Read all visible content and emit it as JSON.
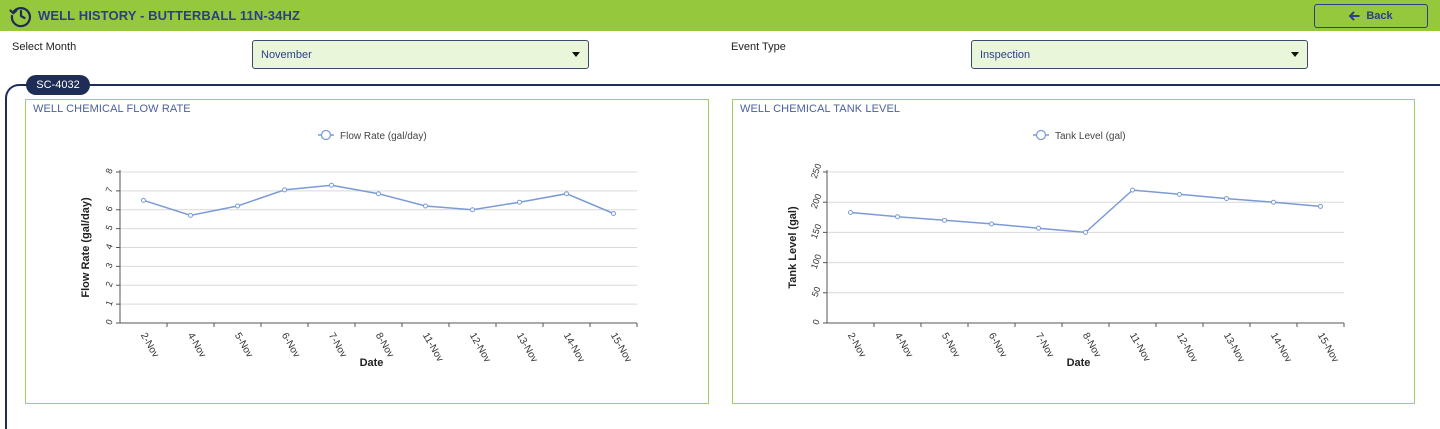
{
  "header": {
    "title": "WELL HISTORY - BUTTERBALL 11N-34HZ",
    "back_label": "Back"
  },
  "filters": {
    "month_label": "Select Month",
    "month_value": "November",
    "event_label": "Event Type",
    "event_value": "Inspection"
  },
  "panel": {
    "tab_label": "SC-4032"
  },
  "colors": {
    "accent_green": "#95c83d",
    "navy": "#2b3f87",
    "line": "#7b9bd6"
  },
  "chart_data": [
    {
      "type": "line",
      "title": "WELL CHEMICAL FLOW RATE",
      "legend": "Flow Rate (gal/day)",
      "xlabel": "Date",
      "ylabel": "Flow Rate (gal/day)",
      "categories": [
        "2-Nov",
        "4-Nov",
        "5-Nov",
        "6-Nov",
        "7-Nov",
        "8-Nov",
        "11-Nov",
        "12-Nov",
        "13-Nov",
        "14-Nov",
        "15-Nov"
      ],
      "values": [
        6.5,
        5.7,
        6.2,
        7.05,
        7.3,
        6.85,
        6.2,
        6.0,
        6.4,
        6.85,
        5.8
      ],
      "ylim": [
        0,
        8
      ],
      "yticks": [
        "0",
        "1",
        "2",
        "3",
        "4",
        "5",
        "6",
        "7",
        "8"
      ]
    },
    {
      "type": "line",
      "title": "WELL CHEMICAL TANK LEVEL",
      "legend": "Tank Level (gal)",
      "xlabel": "Date",
      "ylabel": "Tank Level (gal)",
      "categories": [
        "2-Nov",
        "4-Nov",
        "5-Nov",
        "6-Nov",
        "7-Nov",
        "8-Nov",
        "11-Nov",
        "12-Nov",
        "13-Nov",
        "14-Nov",
        "15-Nov"
      ],
      "values": [
        183,
        176,
        170,
        164,
        157,
        150,
        220,
        213,
        206,
        200,
        193
      ],
      "ylim": [
        0,
        250
      ],
      "yticks": [
        "0",
        "50",
        "100",
        "150",
        "200",
        "250"
      ]
    }
  ]
}
